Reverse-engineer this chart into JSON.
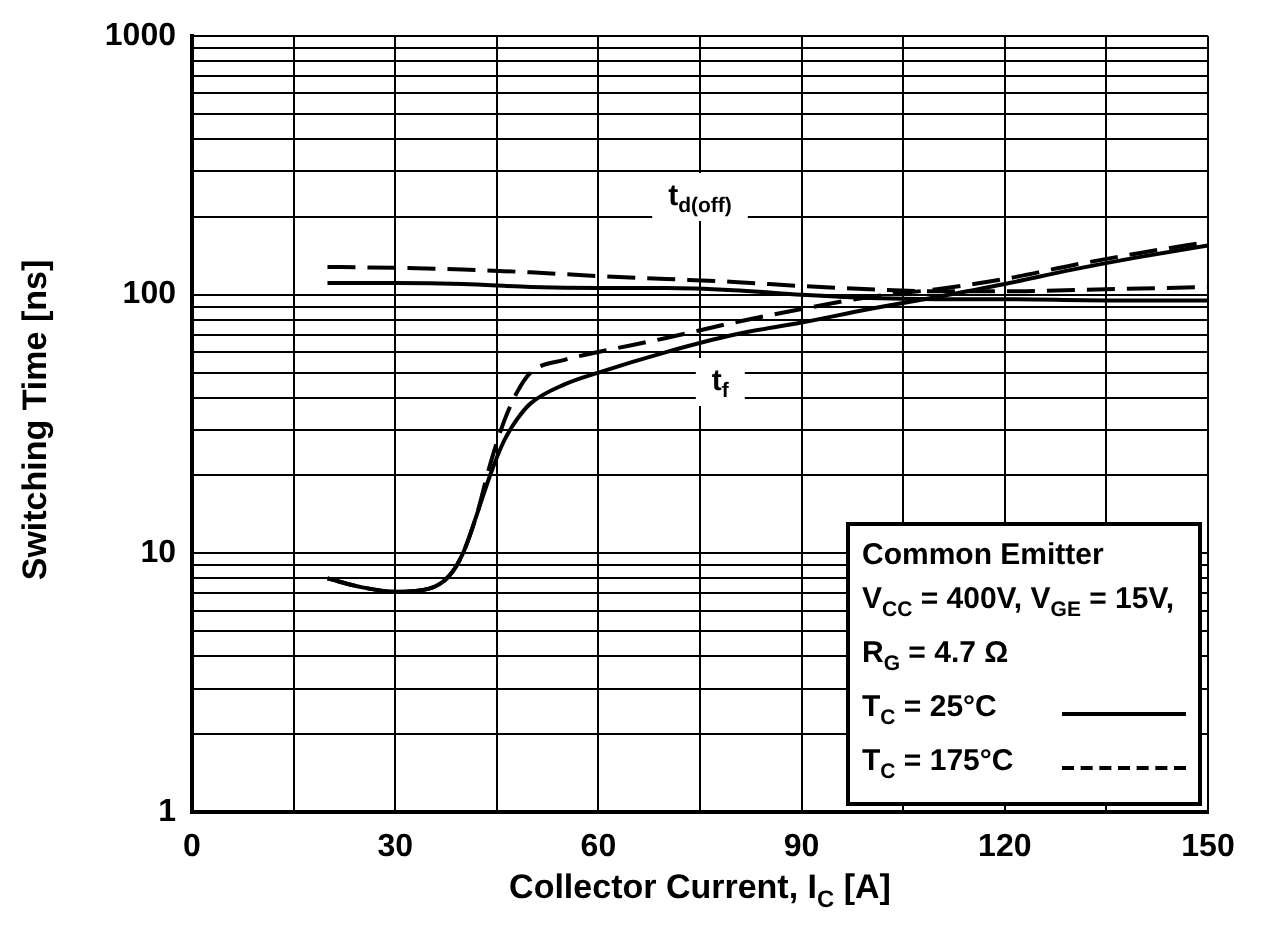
{
  "chart_data": {
    "type": "line",
    "xlabel": "Collector Current, I$_{C}$ [A]",
    "ylabel": "Switching Time [ns]",
    "legend_title": "Common Emitter",
    "legend": "bottom right",
    "grid": true,
    "log": "y",
    "marker": "none",
    "xlim": [
      0,
      150
    ],
    "ylim": [
      1,
      1000
    ],
    "xticks": [
      0,
      {
        "value": 15,
        "label": null
      },
      30,
      {
        "value": 45,
        "label": null
      },
      60,
      {
        "value": 75,
        "label": null
      },
      90,
      {
        "value": 105,
        "label": null
      },
      120,
      {
        "value": 135,
        "label": null
      },
      150
    ],
    "yticks": [
      1,
      {
        "value": 2,
        "label": null
      },
      {
        "value": 3,
        "label": null
      },
      {
        "value": 4,
        "label": null
      },
      {
        "value": 5,
        "label": null
      },
      {
        "value": 6,
        "label": null
      },
      {
        "value": 7,
        "label": null
      },
      {
        "value": 8,
        "label": null
      },
      {
        "value": 9,
        "label": null
      },
      10,
      {
        "value": 20,
        "label": null
      },
      {
        "value": 30,
        "label": null
      },
      {
        "value": 40,
        "label": null
      },
      {
        "value": 50,
        "label": null
      },
      {
        "value": 60,
        "label": null
      },
      {
        "value": 70,
        "label": null
      },
      {
        "value": 80,
        "label": null
      },
      {
        "value": 90,
        "label": null
      },
      100,
      {
        "value": 200,
        "label": null
      },
      {
        "value": 300,
        "label": null
      },
      {
        "value": 400,
        "label": null
      },
      {
        "value": 500,
        "label": null
      },
      {
        "value": 600,
        "label": null
      },
      {
        "value": 700,
        "label": null
      },
      {
        "value": 800,
        "label": null
      },
      {
        "value": 900,
        "label": null
      },
      1000
    ],
    "annotations": [
      "V$_{CC}$ = 400V, V$_{GE}$ = 15V,",
      "R$_{G}$ = 4.7 Ω",
      {
        "text": "t$_{d(off)}$",
        "x": 75,
        "y": 113
      },
      {
        "text": "t$_{f}$",
        "x": 78,
        "y": 68
      }
    ],
    "series": [
      {
        "name": "T$_{C}$ = 25°C",
        "color": "#000000",
        "line_style": "solid",
        "x": [
          20,
          30,
          40,
          50,
          60,
          70,
          80,
          90,
          100,
          110,
          120,
          135,
          150
        ],
        "values": [
          111,
          111,
          110,
          107,
          106,
          106,
          104,
          100,
          97,
          96,
          96,
          95,
          95
        ]
      },
      {
        "name": "T$_{C}$ = 175°C",
        "color": "#000000",
        "line_style": "dashed",
        "x": [
          20,
          30,
          40,
          50,
          60,
          70,
          80,
          90,
          100,
          110,
          120,
          135,
          150
        ],
        "values": [
          128,
          127,
          125,
          122,
          118,
          115,
          112,
          108,
          105,
          103,
          103,
          105,
          107
        ]
      },
      {
        "color": "#000000",
        "line_style": "solid",
        "x": [
          20,
          25,
          30,
          35,
          38,
          40,
          42,
          44,
          46,
          48,
          50,
          55,
          60,
          70,
          80,
          90,
          100,
          110,
          120,
          130,
          140,
          150
        ],
        "values": [
          8,
          7.4,
          7.1,
          7.3,
          8.2,
          10,
          14,
          20,
          27,
          33,
          38,
          45,
          50,
          60,
          70,
          78,
          88,
          98,
          110,
          125,
          140,
          155
        ]
      },
      {
        "color": "#000000",
        "line_style": "dashed",
        "x": [
          20,
          25,
          30,
          35,
          38,
          40,
          42,
          44,
          46,
          48,
          50,
          55,
          60,
          70,
          80,
          90,
          100,
          110,
          120,
          130,
          140,
          150
        ],
        "values": [
          8,
          7.4,
          7.1,
          7.3,
          8.2,
          10,
          14,
          22,
          32,
          42,
          50,
          56,
          60,
          68,
          78,
          88,
          98,
          105,
          115,
          130,
          145,
          160
        ]
      }
    ]
  }
}
